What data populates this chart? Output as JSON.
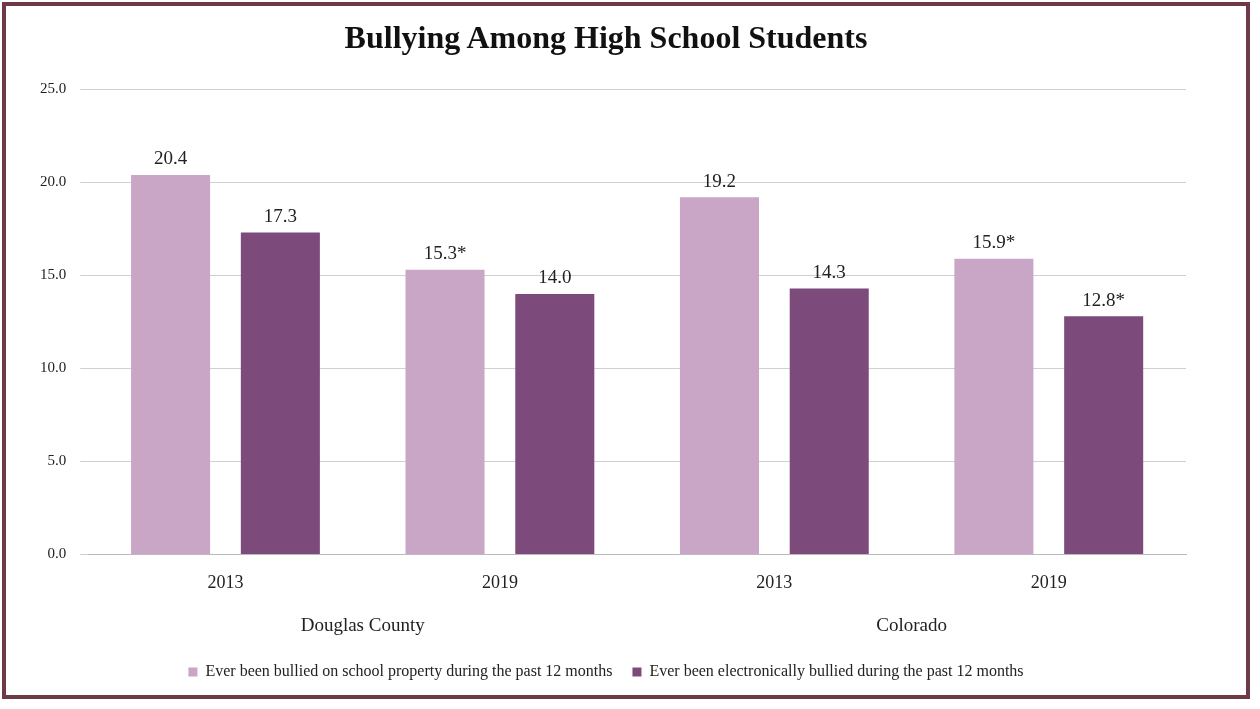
{
  "chart_data": {
    "type": "bar",
    "title": "Bullying Among High School Students",
    "categories": [
      "2013",
      "2019",
      "2013",
      "2019"
    ],
    "series": [
      {
        "name": "Ever been bullied on school property during the past 12 months",
        "color": "#c9a5c6",
        "values": [
          20.4,
          15.3,
          19.2,
          15.9
        ],
        "value_labels": [
          "20.4",
          "15.3*",
          "19.2",
          "15.9*"
        ]
      },
      {
        "name": "Ever been electronically bullied during the past 12 months",
        "color": "#7d4b7b",
        "values": [
          17.3,
          14.0,
          14.3,
          12.8
        ],
        "value_labels": [
          "17.3",
          "14.0",
          "14.3",
          "12.8*"
        ]
      }
    ],
    "annotations": [
      "Douglas County",
      "Colorado"
    ],
    "ylim": [
      0,
      25
    ],
    "yticks": [
      {
        "value": 0,
        "label": "0.0"
      },
      {
        "value": 5,
        "label": "5.0"
      },
      {
        "value": 10,
        "label": "10.0"
      },
      {
        "value": 15,
        "label": "15.0"
      },
      {
        "value": 20,
        "label": "20.0"
      },
      {
        "value": 25,
        "label": "25.0"
      }
    ],
    "grid": "y",
    "legend": "bottom"
  }
}
